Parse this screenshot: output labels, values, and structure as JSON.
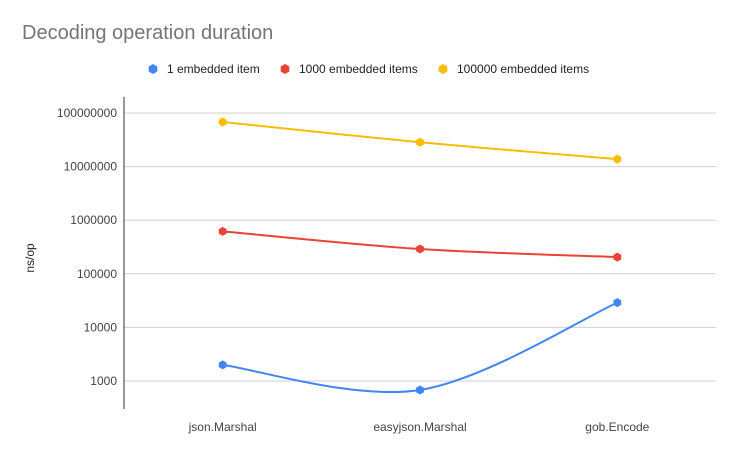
{
  "chart_data": {
    "type": "line",
    "title": "Decoding operation duration",
    "ylabel": "ns/op",
    "xlabel": "",
    "yscale": "log",
    "ylim": [
      300,
      200000000
    ],
    "categories": [
      "json.Marshal",
      "easyjson.Marshal",
      "gob.Encode"
    ],
    "yticks": [
      1000,
      10000,
      100000,
      1000000,
      10000000,
      100000000
    ],
    "ytick_labels": [
      "1000",
      "10000",
      "100000",
      "1000000",
      "10000000",
      "100000000"
    ],
    "grid": true,
    "legend_position": "top",
    "series": [
      {
        "name": "1 embedded item",
        "color": "#4285f4",
        "values": [
          2000,
          680,
          29000
        ]
      },
      {
        "name": "1000 embedded items",
        "color": "#ea4335",
        "values": [
          620000,
          290000,
          205000
        ]
      },
      {
        "name": "100000 embedded items",
        "color": "#fbbc04",
        "values": [
          68000000,
          28500000,
          13800000
        ]
      }
    ]
  }
}
